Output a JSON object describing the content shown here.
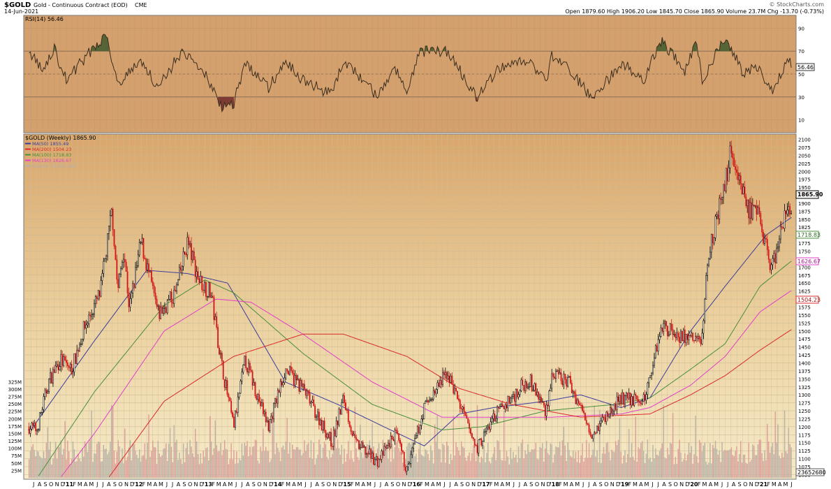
{
  "header": {
    "symbol": "$GOLD",
    "name": "Gold - Continuous Contract (EOD)",
    "exchange": "CME",
    "date": "14-Jun-2021",
    "ohlc": "Open 1879.60  High 1906.20  Low 1845.70  Close 1865.90  Volume 23.7M  Chg -13.70 (-0.73%)",
    "watermark": "© StockCharts.com"
  },
  "rsi_panel": {
    "title": "RSI(14) 56.46",
    "last_value": "56.46",
    "ticks": [
      "90",
      "70",
      "50",
      "30",
      "10"
    ]
  },
  "price_panel": {
    "title": "$GOLD (Weekly) 1865.90",
    "legend": [
      {
        "label": "MA(50) 1855.49",
        "color": "#3b3b9c"
      },
      {
        "label": "MA(200) 1504.23",
        "color": "#d92b2b"
      },
      {
        "label": "MA(100) 1718.83",
        "color": "#4a8f3b"
      },
      {
        "label": "MA(130) 1626.67",
        "color": "#e040c8"
      },
      {
        "label": "Volume 23,652,680",
        "color": "#b0b0b0"
      }
    ],
    "price_ticks": [
      "2100",
      "2075",
      "2050",
      "2025",
      "2000",
      "1975",
      "1950",
      "1925",
      "1900",
      "1875",
      "1850",
      "1825",
      "1800",
      "1775",
      "1750",
      "1725",
      "1700",
      "1675",
      "1650",
      "1625",
      "1600",
      "1575",
      "1550",
      "1525",
      "1500",
      "1475",
      "1450",
      "1425",
      "1400",
      "1375",
      "1350",
      "1325",
      "1300",
      "1275",
      "1250",
      "1225",
      "1200",
      "1175",
      "1150",
      "1125",
      "1100",
      "1075",
      "1050"
    ],
    "volume_ticks": [
      "325M",
      "300M",
      "275M",
      "250M",
      "225M",
      "200M",
      "175M",
      "150M",
      "125M",
      "100M",
      "75M",
      "50M",
      "25M"
    ],
    "labels": {
      "close": "1865.90",
      "ma100": "1718.83",
      "ma130": "1626.67",
      "ma200": "1504.23",
      "volume": "23652680"
    }
  },
  "x_axis": [
    "J",
    "A",
    "S",
    "O",
    "N",
    "D",
    "'11",
    "F",
    "M",
    "A",
    "M",
    "J",
    "J",
    "A",
    "S",
    "O",
    "N",
    "D",
    "'12",
    "F",
    "M",
    "A",
    "M",
    "J",
    "J",
    "A",
    "S",
    "O",
    "N",
    "D",
    "'13",
    "F",
    "M",
    "A",
    "M",
    "J",
    "J",
    "A",
    "S",
    "O",
    "N",
    "D",
    "'14",
    "F",
    "M",
    "A",
    "M",
    "J",
    "J",
    "A",
    "S",
    "O",
    "N",
    "D",
    "'15",
    "F",
    "M",
    "A",
    "M",
    "J",
    "J",
    "A",
    "S",
    "O",
    "N",
    "D",
    "'16",
    "F",
    "M",
    "A",
    "M",
    "J",
    "J",
    "A",
    "S",
    "O",
    "N",
    "D",
    "'17",
    "F",
    "M",
    "A",
    "M",
    "J",
    "J",
    "A",
    "S",
    "O",
    "N",
    "D",
    "'18",
    "F",
    "M",
    "A",
    "M",
    "J",
    "J",
    "A",
    "S",
    "O",
    "N",
    "D",
    "'19",
    "F",
    "M",
    "A",
    "M",
    "J",
    "J",
    "A",
    "S",
    "O",
    "N",
    "D",
    "'20",
    "F",
    "M",
    "A",
    "M",
    "J",
    "J",
    "A",
    "S",
    "O",
    "N",
    "D",
    "'21",
    "F",
    "M",
    "A",
    "M",
    "J"
  ],
  "chart_data": {
    "type": "line",
    "title": "$GOLD (Weekly) 1865.90",
    "price_anchors": [
      [
        "2010-07-01",
        1200
      ],
      [
        "2010-08-01",
        1190
      ],
      [
        "2010-10-01",
        1340
      ],
      [
        "2010-12-01",
        1410
      ],
      [
        "2011-02-01",
        1380
      ],
      [
        "2011-04-01",
        1500
      ],
      [
        "2011-07-01",
        1620
      ],
      [
        "2011-09-01",
        1880
      ],
      [
        "2011-10-01",
        1620
      ],
      [
        "2011-11-01",
        1760
      ],
      [
        "2011-12-01",
        1570
      ],
      [
        "2012-02-01",
        1780
      ],
      [
        "2012-05-01",
        1550
      ],
      [
        "2012-08-01",
        1620
      ],
      [
        "2012-10-01",
        1780
      ],
      [
        "2012-12-01",
        1660
      ],
      [
        "2013-02-01",
        1620
      ],
      [
        "2013-04-01",
        1390
      ],
      [
        "2013-06-01",
        1200
      ],
      [
        "2013-08-01",
        1410
      ],
      [
        "2013-12-01",
        1200
      ],
      [
        "2014-03-01",
        1380
      ],
      [
        "2014-06-01",
        1320
      ],
      [
        "2014-11-01",
        1150
      ],
      [
        "2015-01-01",
        1290
      ],
      [
        "2015-03-01",
        1150
      ],
      [
        "2015-07-01",
        1090
      ],
      [
        "2015-10-01",
        1180
      ],
      [
        "2015-12-01",
        1060
      ],
      [
        "2016-03-01",
        1260
      ],
      [
        "2016-07-01",
        1370
      ],
      [
        "2016-12-01",
        1130
      ],
      [
        "2017-03-01",
        1230
      ],
      [
        "2017-09-01",
        1350
      ],
      [
        "2017-12-01",
        1250
      ],
      [
        "2018-01-01",
        1360
      ],
      [
        "2018-04-01",
        1340
      ],
      [
        "2018-08-01",
        1180
      ],
      [
        "2019-01-01",
        1290
      ],
      [
        "2019-05-01",
        1280
      ],
      [
        "2019-08-01",
        1520
      ],
      [
        "2019-12-01",
        1480
      ],
      [
        "2020-03-01",
        1470
      ],
      [
        "2020-04-01",
        1740
      ],
      [
        "2020-07-01",
        1960
      ],
      [
        "2020-08-01",
        2070
      ],
      [
        "2020-11-01",
        1880
      ],
      [
        "2021-01-01",
        1850
      ],
      [
        "2021-03-01",
        1690
      ],
      [
        "2021-06-01",
        1900
      ],
      [
        "2021-06-14",
        1865.9
      ]
    ],
    "rsi_anchors": [
      [
        "2010-07-01",
        68
      ],
      [
        "2010-09-01",
        52
      ],
      [
        "2010-11-01",
        72
      ],
      [
        "2011-01-01",
        45
      ],
      [
        "2011-04-01",
        62
      ],
      [
        "2011-08-01",
        85
      ],
      [
        "2011-10-01",
        42
      ],
      [
        "2012-02-01",
        62
      ],
      [
        "2012-05-01",
        38
      ],
      [
        "2012-09-01",
        70
      ],
      [
        "2013-01-01",
        50
      ],
      [
        "2013-04-01",
        22
      ],
      [
        "2013-06-01",
        24
      ],
      [
        "2013-08-01",
        60
      ],
      [
        "2013-12-01",
        38
      ],
      [
        "2014-03-01",
        60
      ],
      [
        "2014-06-01",
        45
      ],
      [
        "2014-11-01",
        32
      ],
      [
        "2015-01-01",
        62
      ],
      [
        "2015-07-01",
        30
      ],
      [
        "2015-10-01",
        55
      ],
      [
        "2015-12-01",
        32
      ],
      [
        "2016-02-01",
        70
      ],
      [
        "2016-07-01",
        70
      ],
      [
        "2016-12-01",
        30
      ],
      [
        "2017-04-01",
        55
      ],
      [
        "2017-09-01",
        62
      ],
      [
        "2017-12-01",
        42
      ],
      [
        "2018-01-01",
        65
      ],
      [
        "2018-04-01",
        55
      ],
      [
        "2018-08-01",
        28
      ],
      [
        "2019-01-01",
        60
      ],
      [
        "2019-05-01",
        45
      ],
      [
        "2019-08-01",
        80
      ],
      [
        "2019-12-01",
        52
      ],
      [
        "2020-02-01",
        78
      ],
      [
        "2020-03-01",
        45
      ],
      [
        "2020-07-01",
        82
      ],
      [
        "2020-10-01",
        52
      ],
      [
        "2021-01-01",
        55
      ],
      [
        "2021-03-01",
        35
      ],
      [
        "2021-06-01",
        62
      ],
      [
        "2021-06-14",
        56.46
      ]
    ],
    "ma_anchors": {
      "MA(50)": [
        [
          "2010-07-01",
          1190
        ],
        [
          "2011-06-01",
          1470
        ],
        [
          "2012-03-01",
          1690
        ],
        [
          "2012-10-01",
          1680
        ],
        [
          "2013-05-01",
          1650
        ],
        [
          "2014-03-01",
          1340
        ],
        [
          "2014-12-01",
          1270
        ],
        [
          "2015-08-01",
          1200
        ],
        [
          "2016-03-01",
          1140
        ],
        [
          "2016-09-01",
          1240
        ],
        [
          "2017-03-01",
          1260
        ],
        [
          "2017-12-01",
          1280
        ],
        [
          "2018-06-01",
          1300
        ],
        [
          "2019-01-01",
          1260
        ],
        [
          "2019-06-01",
          1290
        ],
        [
          "2020-01-01",
          1500
        ],
        [
          "2020-07-01",
          1640
        ],
        [
          "2021-02-01",
          1800
        ],
        [
          "2021-06-14",
          1855.49
        ]
      ],
      "MA(100)": [
        [
          "2010-07-01",
          1010
        ],
        [
          "2011-06-01",
          1310
        ],
        [
          "2012-06-01",
          1580
        ],
        [
          "2013-01-01",
          1660
        ],
        [
          "2013-06-01",
          1620
        ],
        [
          "2014-06-01",
          1430
        ],
        [
          "2015-06-01",
          1270
        ],
        [
          "2016-06-01",
          1190
        ],
        [
          "2017-01-01",
          1200
        ],
        [
          "2017-12-01",
          1250
        ],
        [
          "2018-12-01",
          1270
        ],
        [
          "2019-06-01",
          1290
        ],
        [
          "2020-01-01",
          1380
        ],
        [
          "2020-07-01",
          1460
        ],
        [
          "2021-01-01",
          1640
        ],
        [
          "2021-06-14",
          1718.83
        ]
      ],
      "MA(130)": [
        [
          "2010-07-01",
          920
        ],
        [
          "2011-06-01",
          1180
        ],
        [
          "2012-06-01",
          1500
        ],
        [
          "2013-03-01",
          1600
        ],
        [
          "2013-09-01",
          1590
        ],
        [
          "2014-06-01",
          1490
        ],
        [
          "2015-06-01",
          1340
        ],
        [
          "2016-06-01",
          1230
        ],
        [
          "2017-01-01",
          1230
        ],
        [
          "2018-01-01",
          1230
        ],
        [
          "2019-01-01",
          1240
        ],
        [
          "2019-06-01",
          1260
        ],
        [
          "2020-01-01",
          1330
        ],
        [
          "2020-07-01",
          1420
        ],
        [
          "2021-01-01",
          1560
        ],
        [
          "2021-06-14",
          1626.67
        ]
      ],
      "MA(200)": [
        [
          "2010-07-01",
          790
        ],
        [
          "2011-06-01",
          980
        ],
        [
          "2012-06-01",
          1280
        ],
        [
          "2013-06-01",
          1420
        ],
        [
          "2014-06-01",
          1490
        ],
        [
          "2015-01-01",
          1490
        ],
        [
          "2015-12-01",
          1420
        ],
        [
          "2016-09-01",
          1320
        ],
        [
          "2017-06-01",
          1270
        ],
        [
          "2018-06-01",
          1230
        ],
        [
          "2019-06-01",
          1240
        ],
        [
          "2020-01-01",
          1300
        ],
        [
          "2020-07-01",
          1360
        ],
        [
          "2021-01-01",
          1440
        ],
        [
          "2021-06-14",
          1504.23
        ]
      ]
    },
    "price_range": [
      1040,
      2110
    ],
    "rsi_range": [
      0,
      100
    ],
    "volume_range": [
      0,
      340
    ],
    "x_range": [
      "2010-06-15",
      "2021-06-21"
    ]
  }
}
